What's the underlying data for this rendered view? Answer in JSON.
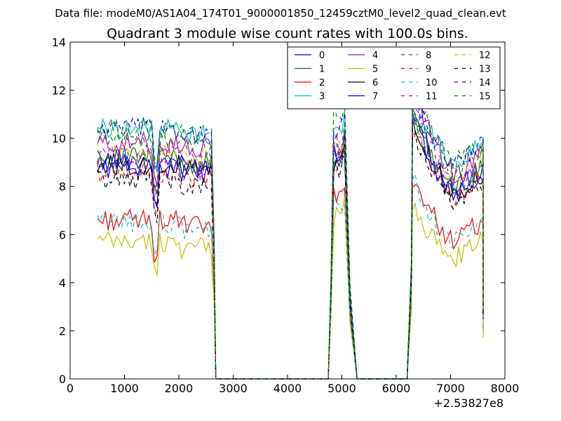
{
  "chart_data": {
    "type": "line",
    "suptitle": "Data file: modeM0/AS1A04_174T01_9000001850_12459cztM0_level2_quad_clean.evt",
    "title": "Quadrant 3 module wise count rates with 100.0s bins.",
    "xlabel": "",
    "ylabel": "",
    "x_offset_label": "+2.53827e8",
    "xlim": [
      0,
      8000
    ],
    "ylim": [
      0,
      14
    ],
    "xticks": [
      "0",
      "1000",
      "2000",
      "3000",
      "4000",
      "5000",
      "6000",
      "7000",
      "8000"
    ],
    "yticks": [
      "0",
      "2",
      "4",
      "6",
      "8",
      "10",
      "12",
      "14"
    ],
    "grid": false,
    "legend_position": "top-right",
    "legend_columns": 4,
    "segments": [
      {
        "x_start": 500,
        "x_end": 2600,
        "step": 50
      },
      {
        "x_start": 4800,
        "x_end": 5050,
        "step": 50
      },
      {
        "x_start": 6300,
        "x_end": 7600,
        "step": 50
      }
    ],
    "series": [
      {
        "name": "0",
        "color": "#0000ff",
        "dash": false,
        "level": 9.1,
        "peak": 9.1,
        "late": 11.3,
        "seed": 1
      },
      {
        "name": "1",
        "color": "#008000",
        "dash": false,
        "level": 9.2,
        "peak": 9.3,
        "late": 10.9,
        "seed": 2
      },
      {
        "name": "2",
        "color": "#ff0000",
        "dash": false,
        "level": 6.6,
        "peak": 7.5,
        "late": 8.4,
        "seed": 3
      },
      {
        "name": "3",
        "color": "#00bfbf",
        "dash": false,
        "level": 10.4,
        "peak": 10.4,
        "late": 12.0,
        "seed": 4
      },
      {
        "name": "4",
        "color": "#bf00bf",
        "dash": false,
        "level": 9.8,
        "peak": 9.6,
        "late": 12.3,
        "seed": 5
      },
      {
        "name": "5",
        "color": "#bfbf00",
        "dash": false,
        "level": 5.7,
        "peak": 6.8,
        "late": 7.2,
        "seed": 6
      },
      {
        "name": "6",
        "color": "#000000",
        "dash": false,
        "level": 8.9,
        "peak": 9.0,
        "late": 10.7,
        "seed": 7
      },
      {
        "name": "7",
        "color": "#0000ff",
        "dash": false,
        "level": 8.8,
        "peak": 9.2,
        "late": 10.9,
        "seed": 8
      },
      {
        "name": "8",
        "color": "#008000",
        "dash": true,
        "level": 10.4,
        "peak": 11.2,
        "late": 12.3,
        "seed": 9
      },
      {
        "name": "9",
        "color": "#ff0000",
        "dash": true,
        "level": 8.6,
        "peak": 9.0,
        "late": 10.6,
        "seed": 10
      },
      {
        "name": "10",
        "color": "#00bfbf",
        "dash": true,
        "level": 6.5,
        "peak": 7.0,
        "late": 8.3,
        "seed": 11
      },
      {
        "name": "11",
        "color": "#bf00bf",
        "dash": true,
        "level": 9.3,
        "peak": 9.7,
        "late": 11.5,
        "seed": 12
      },
      {
        "name": "12",
        "color": "#bfbf00",
        "dash": true,
        "level": 9.4,
        "peak": 9.4,
        "late": 11.2,
        "seed": 13
      },
      {
        "name": "13",
        "color": "#000000",
        "dash": true,
        "level": 8.3,
        "peak": 8.7,
        "late": 10.4,
        "seed": 14
      },
      {
        "name": "14",
        "color": "#0000ff",
        "dash": true,
        "level": 10.4,
        "peak": 10.3,
        "late": 11.7,
        "seed": 15
      },
      {
        "name": "15",
        "color": "#008000",
        "dash": true,
        "level": 10.0,
        "peak": 9.5,
        "late": 11.4,
        "seed": 16
      }
    ]
  }
}
